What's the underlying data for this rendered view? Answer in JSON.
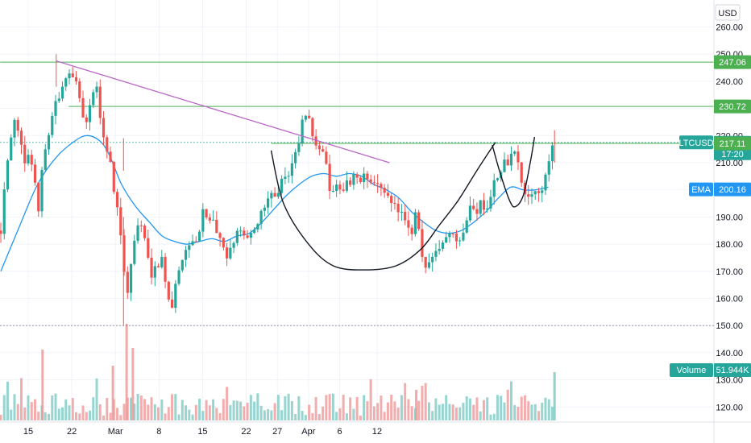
{
  "chart_data": {
    "type": "candlestick",
    "symbol": "LTCUSD",
    "currency": "USD",
    "x_ticks": [
      {
        "label": "15",
        "day": 15
      },
      {
        "label": "22",
        "day": 22
      },
      {
        "label": "Mar",
        "day": 29
      },
      {
        "label": "8",
        "day": 36
      },
      {
        "label": "15",
        "day": 43
      },
      {
        "label": "22",
        "day": 50
      },
      {
        "label": "27",
        "day": 55
      },
      {
        "label": "Apr",
        "day": 60
      },
      {
        "label": "6",
        "day": 65
      },
      {
        "label": "12",
        "day": 71
      }
    ],
    "y_ticks": [
      "260.00",
      "250.00",
      "240.00",
      "230.00",
      "220.00",
      "210.00",
      "200.00",
      "190.00",
      "180.00",
      "170.00",
      "160.00",
      "150.00",
      "140.00",
      "130.00",
      "120.00"
    ],
    "ylim": [
      117,
      268
    ],
    "price_labels": [
      {
        "name": "level-247",
        "text": "247.06",
        "value": 247.06,
        "color": "#4caf50"
      },
      {
        "name": "level-230",
        "text": "230.72",
        "value": 230.72,
        "color": "#4caf50"
      },
      {
        "name": "last-price",
        "text": "217.48",
        "sub": "17:20",
        "value": 217.48,
        "color": "#26a69a",
        "tag": "LTCUSD"
      },
      {
        "name": "level-217",
        "text": "217.11",
        "value": 217.11,
        "color": "#4caf50"
      },
      {
        "name": "ema",
        "text": "200.16",
        "value": 200.16,
        "color": "#2196f3",
        "tag": "EMA"
      }
    ],
    "volume_label": {
      "tag": "Volume",
      "text": "51.944K",
      "color": "#26a69a"
    },
    "horizontal_levels": [
      {
        "value": 247.06,
        "from_day": 10.5,
        "style": "solid",
        "color": "#4caf50"
      },
      {
        "value": 230.72,
        "from_day": 21.5,
        "style": "solid",
        "color": "#4caf50"
      },
      {
        "value": 217.48,
        "from_day": 10.5,
        "style": "dotted",
        "color": "#26a69a"
      },
      {
        "value": 217.11,
        "from_day": 54,
        "style": "solid",
        "color": "#4caf50"
      },
      {
        "value": 150,
        "from_day": 10.5,
        "style": "dotted",
        "color": "#787b86"
      }
    ],
    "trendline": {
      "from": [
        19.5,
        247.5
      ],
      "to": [
        73,
        210
      ],
      "color": "#ba68c8"
    },
    "cup": [
      [
        54,
        214.5
      ],
      [
        56,
        195
      ],
      [
        60,
        180
      ],
      [
        64,
        172
      ],
      [
        69,
        170.5
      ],
      [
        74,
        172
      ],
      [
        78,
        178
      ],
      [
        81,
        187
      ],
      [
        84,
        196
      ],
      [
        87,
        207
      ],
      [
        90,
        217.5
      ]
    ],
    "handle": [
      [
        89.5,
        216.5
      ],
      [
        90.8,
        206
      ],
      [
        92.3,
        196
      ],
      [
        93.2,
        193.8
      ],
      [
        94.5,
        198
      ],
      [
        95.6,
        210
      ],
      [
        96.3,
        219.5
      ]
    ],
    "close_path": [
      [
        10.6,
        185
      ],
      [
        11.2,
        203
      ],
      [
        11.8,
        213
      ],
      [
        12.6,
        226
      ],
      [
        13.2,
        222
      ],
      [
        13.6,
        218
      ],
      [
        14.4,
        211
      ],
      [
        15.3,
        213
      ],
      [
        16.1,
        203
      ],
      [
        16.6,
        191
      ],
      [
        17,
        199
      ],
      [
        17.4,
        213
      ],
      [
        18.1,
        219
      ],
      [
        18.7,
        225
      ],
      [
        19.3,
        233
      ],
      [
        20,
        233
      ],
      [
        20.6,
        238
      ],
      [
        21.1,
        241
      ],
      [
        21.7,
        245
      ],
      [
        22.3,
        242
      ],
      [
        22.9,
        237
      ],
      [
        23.5,
        229
      ],
      [
        24.4,
        224
      ],
      [
        25.4,
        236
      ],
      [
        26.1,
        237
      ],
      [
        26.5,
        228
      ],
      [
        27,
        221
      ],
      [
        27.4,
        215
      ],
      [
        28,
        214
      ],
      [
        28.6,
        202
      ],
      [
        29.2,
        195
      ],
      [
        29.8,
        186
      ],
      [
        30.3,
        170
      ],
      [
        30.9,
        162
      ],
      [
        31.5,
        172
      ],
      [
        32,
        181
      ],
      [
        32.7,
        188
      ],
      [
        33.3,
        186
      ],
      [
        33.8,
        181
      ],
      [
        34.3,
        174
      ],
      [
        34.9,
        168
      ],
      [
        35.4,
        174
      ],
      [
        35.9,
        172
      ],
      [
        36.5,
        175
      ],
      [
        37.2,
        164
      ],
      [
        37.6,
        160
      ],
      [
        38.1,
        157
      ],
      [
        38.6,
        164
      ],
      [
        39.3,
        171
      ],
      [
        39.8,
        176
      ],
      [
        40.5,
        179
      ],
      [
        41.3,
        181
      ],
      [
        42,
        181
      ],
      [
        42.6,
        187
      ],
      [
        43.2,
        194
      ],
      [
        43.6,
        191
      ],
      [
        44.1,
        187
      ],
      [
        44.5,
        189
      ],
      [
        45.1,
        185
      ],
      [
        45.6,
        183
      ],
      [
        46,
        180
      ],
      [
        46.7,
        175
      ],
      [
        47.1,
        175
      ],
      [
        47.6,
        179
      ],
      [
        48.1,
        182
      ],
      [
        48.7,
        184
      ],
      [
        49.1,
        186
      ],
      [
        49.6,
        183
      ],
      [
        50.2,
        181
      ],
      [
        50.7,
        183
      ],
      [
        51.4,
        185
      ],
      [
        52,
        189
      ],
      [
        52.6,
        194
      ],
      [
        53.2,
        193
      ],
      [
        53.6,
        200
      ],
      [
        54.2,
        198
      ],
      [
        54.6,
        198
      ],
      [
        55.2,
        200
      ],
      [
        55.6,
        204
      ],
      [
        56.1,
        206
      ],
      [
        56.6,
        203
      ],
      [
        57.1,
        207
      ],
      [
        57.6,
        212
      ],
      [
        58.2,
        213
      ],
      [
        58.6,
        220
      ],
      [
        59.1,
        226
      ],
      [
        59.5,
        228
      ],
      [
        60.1,
        225
      ],
      [
        60.5,
        221
      ],
      [
        61,
        218
      ],
      [
        61.5,
        217
      ],
      [
        62.1,
        215
      ],
      [
        62.6,
        214
      ],
      [
        63,
        205
      ],
      [
        63.5,
        199
      ],
      [
        64.1,
        199
      ],
      [
        64.6,
        201
      ],
      [
        65.2,
        198
      ],
      [
        65.6,
        201
      ],
      [
        66.1,
        204
      ],
      [
        66.7,
        202
      ],
      [
        67.3,
        206
      ],
      [
        68,
        202
      ],
      [
        68.7,
        205
      ],
      [
        69.3,
        204
      ],
      [
        70,
        204
      ],
      [
        70.6,
        202
      ],
      [
        71.3,
        201
      ],
      [
        72,
        198
      ],
      [
        72.6,
        199
      ],
      [
        73.4,
        196
      ],
      [
        74.1,
        193
      ],
      [
        74.8,
        192
      ],
      [
        75.4,
        189
      ],
      [
        76,
        185
      ],
      [
        76.6,
        183
      ],
      [
        77.3,
        193
      ],
      [
        77.8,
        183
      ],
      [
        78.3,
        173
      ],
      [
        78.7,
        172
      ],
      [
        79.1,
        171
      ],
      [
        79.7,
        176
      ],
      [
        80.2,
        178
      ],
      [
        80.7,
        177
      ],
      [
        81.4,
        181
      ],
      [
        82,
        183
      ],
      [
        82.6,
        183
      ],
      [
        83.3,
        185
      ],
      [
        84,
        181
      ],
      [
        84.7,
        184
      ],
      [
        85.3,
        189
      ],
      [
        85.9,
        193
      ],
      [
        86.5,
        194
      ],
      [
        87.1,
        191
      ],
      [
        87.6,
        196
      ],
      [
        88.2,
        194
      ],
      [
        88.8,
        194
      ],
      [
        89.5,
        201
      ],
      [
        90.1,
        205
      ],
      [
        90.7,
        204
      ],
      [
        91.3,
        210
      ],
      [
        92,
        210
      ],
      [
        92.6,
        213
      ],
      [
        93.4,
        215
      ],
      [
        93.8,
        206
      ],
      [
        94.4,
        201
      ],
      [
        94.9,
        196
      ],
      [
        95.4,
        198
      ],
      [
        95.9,
        199
      ],
      [
        96.5,
        200
      ],
      [
        97.1,
        198
      ],
      [
        97.6,
        201
      ],
      [
        98.2,
        207
      ],
      [
        98.9,
        214
      ],
      [
        99.5,
        217.5
      ]
    ],
    "ema_path": [
      [
        10.6,
        170
      ],
      [
        13.5,
        186
      ],
      [
        16.5,
        202
      ],
      [
        19.5,
        212
      ],
      [
        22.5,
        218
      ],
      [
        24.5,
        220
      ],
      [
        26.5,
        218
      ],
      [
        28,
        213
      ],
      [
        30,
        202
      ],
      [
        32.2,
        194
      ],
      [
        34.5,
        188
      ],
      [
        36.5,
        183
      ],
      [
        38.5,
        181
      ],
      [
        40.5,
        180
      ],
      [
        42.5,
        181
      ],
      [
        44.5,
        182
      ],
      [
        46.5,
        181
      ],
      [
        48.5,
        183
      ],
      [
        50.5,
        184
      ],
      [
        52.5,
        188
      ],
      [
        54.5,
        193
      ],
      [
        56.5,
        198
      ],
      [
        58.5,
        202
      ],
      [
        60.5,
        205
      ],
      [
        62.5,
        206
      ],
      [
        64.5,
        205
      ],
      [
        66.5,
        206
      ],
      [
        68.5,
        205
      ],
      [
        70.5,
        202
      ],
      [
        72.5,
        200
      ],
      [
        74.5,
        197
      ],
      [
        76.5,
        192
      ],
      [
        78.5,
        188
      ],
      [
        80.5,
        185
      ],
      [
        82.5,
        184
      ],
      [
        84.5,
        185
      ],
      [
        86.5,
        188
      ],
      [
        88.5,
        192
      ],
      [
        90.5,
        197
      ],
      [
        92.5,
        201
      ],
      [
        94.5,
        200
      ],
      [
        96.5,
        200
      ],
      [
        98.5,
        201
      ]
    ],
    "spikes": [
      {
        "day": 19.5,
        "high": 250
      },
      {
        "day": 30.3,
        "high": 219
      },
      {
        "day": 30.3,
        "low": 150
      },
      {
        "day": 99.5,
        "high": 222
      }
    ],
    "volume_spikes": [
      {
        "day": 17.3,
        "height": 88,
        "color": "#ef9a9a"
      },
      {
        "day": 28.6,
        "height": 68,
        "color": "#ef9a9a"
      },
      {
        "day": 30.8,
        "height": 120,
        "color": "#ef9a9a"
      },
      {
        "day": 31.8,
        "height": 90,
        "color": "#ef9a9a"
      },
      {
        "day": 77.3,
        "height": 38,
        "color": "#ef9a9a"
      },
      {
        "day": 99.5,
        "height": 60,
        "color": "#80cbc4"
      }
    ]
  }
}
